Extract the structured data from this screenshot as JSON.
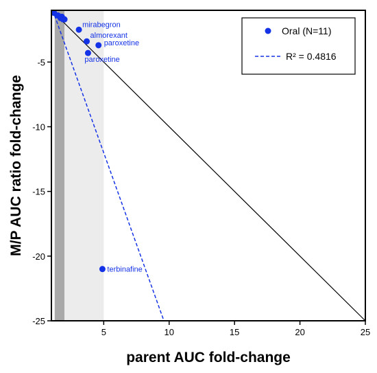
{
  "chart_data": {
    "type": "scatter",
    "title": "",
    "xlabel": "parent AUC fold-change",
    "ylabel": "M/P AUC ratio fold-change",
    "xlim": [
      1,
      25
    ],
    "ylim": [
      -25,
      -1
    ],
    "x_ticks": [
      {
        "value": 5,
        "label": "5"
      },
      {
        "value": 10,
        "label": "10"
      },
      {
        "value": 15,
        "label": "15"
      },
      {
        "value": 20,
        "label": "20"
      },
      {
        "value": 25,
        "label": "25"
      }
    ],
    "y_ticks": [
      {
        "value": -5,
        "label": "-5"
      },
      {
        "value": -10,
        "label": "-10"
      },
      {
        "value": -15,
        "label": "-15"
      },
      {
        "value": -20,
        "label": "-20"
      },
      {
        "value": -25,
        "label": "-25"
      }
    ],
    "shaded_regions": [
      {
        "x0": 1.25,
        "x1": 2.0,
        "color": "#a9a9a9"
      },
      {
        "x0": 2.0,
        "x1": 5.0,
        "color": "#ececec"
      }
    ],
    "identity_line": {
      "from": [
        1,
        -1
      ],
      "to": [
        25,
        -25
      ],
      "color": "#000000"
    },
    "series": [
      {
        "name": "Oral (N=11)",
        "color": "#1432e6",
        "points": [
          {
            "x": 1.2,
            "y": -1.2,
            "label": ""
          },
          {
            "x": 1.5,
            "y": -1.4,
            "label": ""
          },
          {
            "x": 1.7,
            "y": -1.6,
            "label": ""
          },
          {
            "x": 1.8,
            "y": -1.5,
            "label": ""
          },
          {
            "x": 1.9,
            "y": -1.7,
            "label": ""
          },
          {
            "x": 2.0,
            "y": -1.7,
            "label": ""
          },
          {
            "x": 3.1,
            "y": -2.5,
            "label": "mirabegron"
          },
          {
            "x": 3.7,
            "y": -3.4,
            "label": "almorexant"
          },
          {
            "x": 4.6,
            "y": -3.7,
            "label": "paroxetine"
          },
          {
            "x": 3.8,
            "y": -4.3,
            "label": "paroxetine"
          },
          {
            "x": 4.9,
            "y": -21.0,
            "label": "terbinafine"
          }
        ]
      }
    ],
    "regression": {
      "from": [
        1.1,
        -1.0
      ],
      "to": [
        9.6,
        -25.0
      ],
      "r2_label": "R² = 0.4816",
      "color": "#1432e6"
    },
    "legend": {
      "position": "top-right",
      "entries": [
        "Oral (N=11)",
        "R² = 0.4816"
      ]
    }
  }
}
